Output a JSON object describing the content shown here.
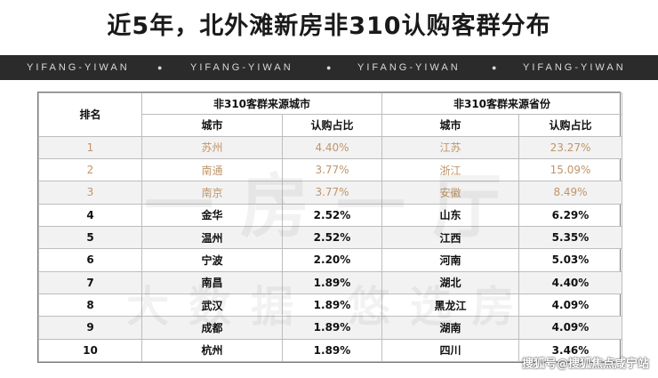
{
  "title": "近5年，北外滩新房非310认购客群分布",
  "banner": {
    "text": "YIFANG-YIWAN",
    "dot": "●"
  },
  "table": {
    "rank_header": "排名",
    "group_city": "非310客群来源城市",
    "group_province": "非310客群来源省份",
    "col_city": "城市",
    "col_city_share": "认购占比",
    "col_province": "城市",
    "col_province_share": "认购占比",
    "rows": [
      {
        "rank": "1",
        "city": "苏州",
        "city_share": "4.40%",
        "province": "江苏",
        "province_share": "23.27%"
      },
      {
        "rank": "2",
        "city": "南通",
        "city_share": "3.77%",
        "province": "浙江",
        "province_share": "15.09%"
      },
      {
        "rank": "3",
        "city": "南京",
        "city_share": "3.77%",
        "province": "安徽",
        "province_share": "8.49%"
      },
      {
        "rank": "4",
        "city": "金华",
        "city_share": "2.52%",
        "province": "山东",
        "province_share": "6.29%"
      },
      {
        "rank": "5",
        "city": "温州",
        "city_share": "2.52%",
        "province": "江西",
        "province_share": "5.35%"
      },
      {
        "rank": "6",
        "city": "宁波",
        "city_share": "2.20%",
        "province": "河南",
        "province_share": "5.03%"
      },
      {
        "rank": "7",
        "city": "南昌",
        "city_share": "1.89%",
        "province": "湖北",
        "province_share": "4.40%"
      },
      {
        "rank": "8",
        "city": "武汉",
        "city_share": "1.89%",
        "province": "黑龙江",
        "province_share": "4.09%"
      },
      {
        "rank": "9",
        "city": "成都",
        "city_share": "1.89%",
        "province": "湖南",
        "province_share": "4.09%"
      },
      {
        "rank": "10",
        "city": "杭州",
        "city_share": "1.89%",
        "province": "四川",
        "province_share": "3.46%"
      }
    ]
  },
  "watermark": {
    "line1": "一房一厅",
    "line2": "大数据 悠选房"
  },
  "credit": "搜狐号@搜狐焦点咸宁站"
}
